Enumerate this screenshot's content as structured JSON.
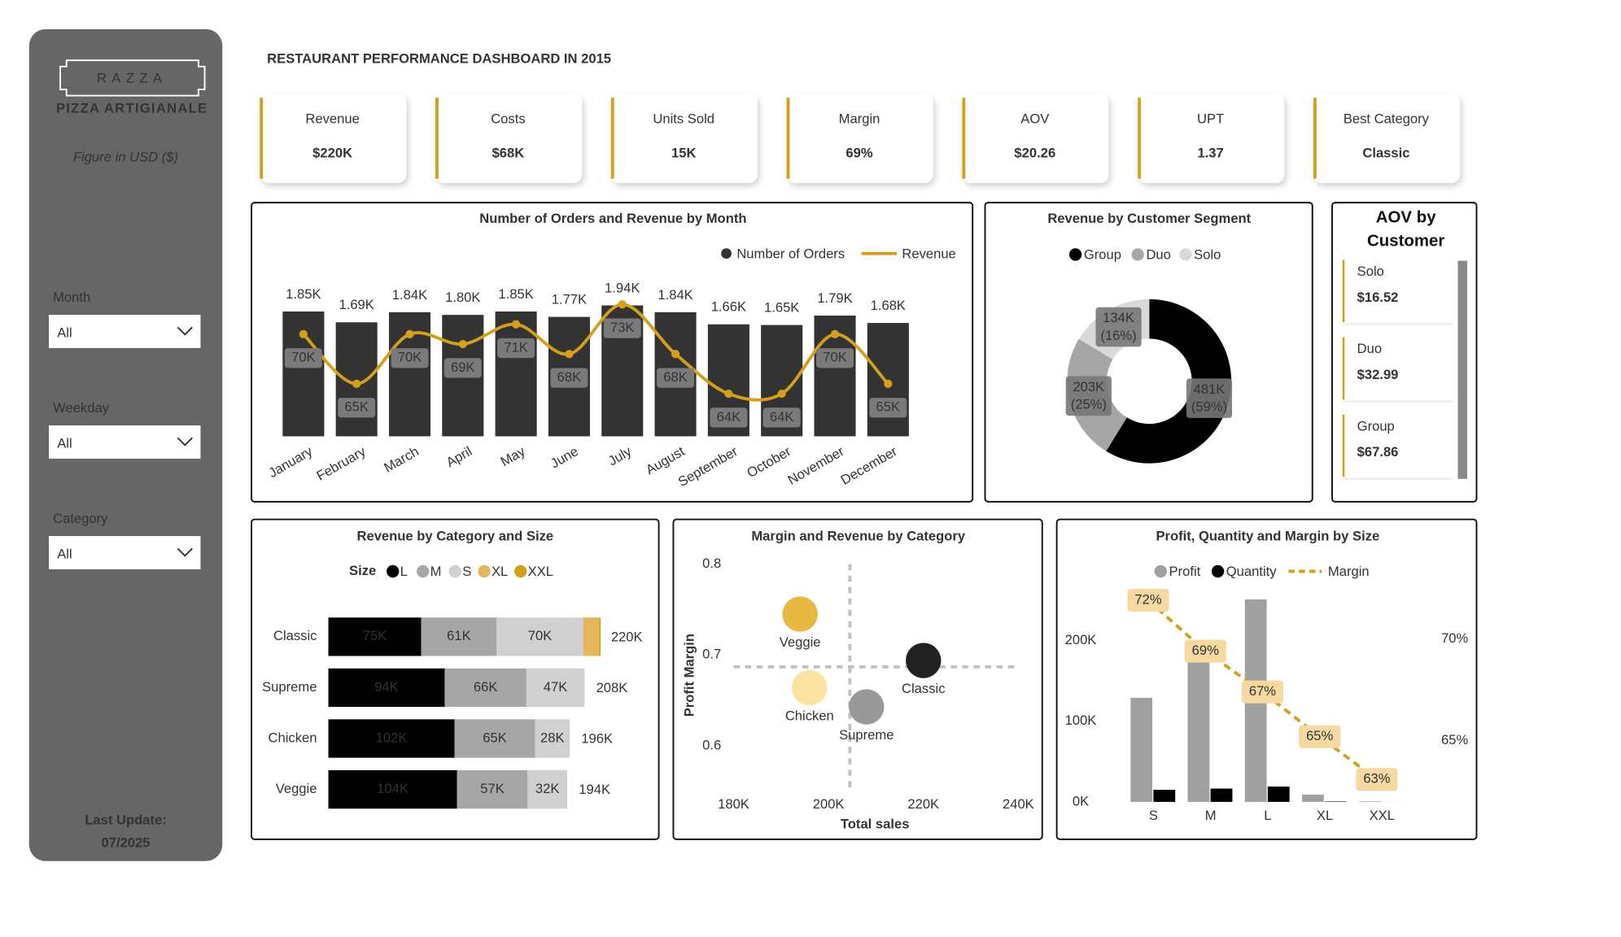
{
  "sidebar": {
    "logo": "RAZZA",
    "logo_tagline": "PIZZA ARTIGIANALE",
    "note": "Figure in USD ($)",
    "filters": [
      {
        "label": "Month",
        "value": "All"
      },
      {
        "label": "Weekday",
        "value": "All"
      },
      {
        "label": "Category",
        "value": "All"
      }
    ],
    "last_update_label": "Last Update:",
    "last_update": "07/2025"
  },
  "header": {
    "title": "RESTAURANT PERFORMANCE DASHBOARD IN 2015"
  },
  "kpis": [
    {
      "label": "Revenue",
      "value": "$220K"
    },
    {
      "label": "Costs",
      "value": "$68K"
    },
    {
      "label": "Units Sold",
      "value": "15K"
    },
    {
      "label": "Margin",
      "value": "69%"
    },
    {
      "label": "AOV",
      "value": "$20.26"
    },
    {
      "label": "UPT",
      "value": "1.37"
    },
    {
      "label": "Best Category",
      "value": "Classic"
    }
  ],
  "aov_by_customer": {
    "title": "AOV by Customer",
    "items": [
      {
        "name": "Solo",
        "value": "$16.52"
      },
      {
        "name": "Duo",
        "value": "$32.99"
      },
      {
        "name": "Group",
        "value": "$67.86"
      }
    ]
  },
  "chart_data": [
    {
      "type": "bar",
      "title": "Number of Orders and Revenue by Month",
      "legend": "top-right",
      "categories": [
        "January",
        "February",
        "March",
        "April",
        "May",
        "June",
        "July",
        "August",
        "September",
        "October",
        "November",
        "December"
      ],
      "series": [
        {
          "name": "Number of Orders",
          "color": "#333333",
          "values": [
            1850,
            1690,
            1840,
            1800,
            1850,
            1770,
            1940,
            1840,
            1660,
            1650,
            1790,
            1680
          ],
          "value_labels": [
            "1.85K",
            "1.69K",
            "1.84K",
            "1.80K",
            "1.85K",
            "1.77K",
            "1.94K",
            "1.84K",
            "1.66K",
            "1.65K",
            "1.79K",
            "1.68K"
          ]
        },
        {
          "name": "Revenue",
          "type": "line",
          "color": "#d4a017",
          "values": [
            70000,
            65000,
            70000,
            69000,
            71000,
            68000,
            73000,
            68000,
            64000,
            64000,
            70000,
            65000
          ],
          "value_labels": [
            "70K",
            "65K",
            "70K",
            "69K",
            "71K",
            "68K",
            "73K",
            "68K",
            "64K",
            "64K",
            "70K",
            "65K"
          ]
        }
      ]
    },
    {
      "type": "pie",
      "donut": true,
      "title": "Revenue by Customer Segment",
      "legend": "top",
      "categories": [
        "Group",
        "Duo",
        "Solo"
      ],
      "colors": [
        "#000000",
        "#a6a6a6",
        "#d9d9d9"
      ],
      "values": [
        481000,
        203000,
        134000
      ],
      "value_labels": [
        "481K",
        "203K",
        "134K"
      ],
      "percent_labels": [
        "(59%)",
        "(25%)",
        "(16%)"
      ]
    },
    {
      "type": "bar",
      "orientation": "horizontal",
      "stacked": true,
      "title": "Revenue by Category and Size",
      "legend": "top",
      "legend_title": "Size",
      "categories": [
        "Classic",
        "Supreme",
        "Chicken",
        "Veggie"
      ],
      "series": [
        {
          "name": "L",
          "color": "#000000",
          "values": [
            75000,
            94000,
            102000,
            104000
          ],
          "value_labels": [
            "75K",
            "94K",
            "102K",
            "104K"
          ]
        },
        {
          "name": "M",
          "color": "#a6a6a6",
          "values": [
            61000,
            66000,
            65000,
            57000
          ],
          "value_labels": [
            "61K",
            "66K",
            "65K",
            "57K"
          ]
        },
        {
          "name": "S",
          "color": "#d0d0d0",
          "values": [
            70000,
            47000,
            28000,
            32000
          ],
          "value_labels": [
            "70K",
            "47K",
            "28K",
            "32K"
          ]
        },
        {
          "name": "XL",
          "color": "#e6b65c",
          "values": [
            13000,
            null,
            null,
            null
          ]
        },
        {
          "name": "XXL",
          "color": "#d4a017",
          "values": [
            1000,
            null,
            null,
            null
          ]
        }
      ],
      "totals": [
        220000,
        208000,
        196000,
        194000
      ],
      "total_labels": [
        "220K",
        "208K",
        "196K",
        "194K"
      ]
    },
    {
      "type": "scatter",
      "title": "Margin and Revenue by Category",
      "x_label": "Total sales",
      "y_label": "Profit Margin",
      "xlim": [
        180000,
        240000
      ],
      "xticks": [
        {
          "value": 180000,
          "label": "180K"
        },
        {
          "value": 200000,
          "label": "200K"
        },
        {
          "value": 220000,
          "label": "220K"
        },
        {
          "value": 240000,
          "label": "240K"
        }
      ],
      "ylim": [
        0.55,
        0.8
      ],
      "yticks": [
        0.6,
        0.7,
        0.8
      ],
      "categories": [
        "Veggie",
        "Classic",
        "Chicken",
        "Supreme"
      ],
      "colors": [
        "#e8b840",
        "#222222",
        "#fbe3a0",
        "#999999"
      ],
      "x": [
        194000,
        220000,
        196000,
        208000
      ],
      "values": [
        0.745,
        0.694,
        0.664,
        0.643
      ],
      "reference_lines": {
        "x": 204500,
        "y": 0.687
      }
    },
    {
      "type": "bar",
      "title": "Profit, Quantity and Margin by Size",
      "legend": "top",
      "line_style": "dashed",
      "categories": [
        "S",
        "M",
        "L",
        "XL",
        "XXL"
      ],
      "series": [
        {
          "name": "Profit",
          "color": "#a0a0a0",
          "values": [
            129000,
            173000,
            251000,
            9000,
            700
          ]
        },
        {
          "name": "Quantity",
          "color": "#000000",
          "values": [
            15000,
            16500,
            19000,
            550,
            30
          ]
        },
        {
          "name": "Margin",
          "type": "line",
          "axis": "y2",
          "color": "#d4a017",
          "values": [
            71.9,
            69.4,
            67.4,
            65.2,
            63.1
          ],
          "value_labels": [
            "72%",
            "69%",
            "67%",
            "65%",
            "63%"
          ]
        }
      ],
      "ylim": [
        0,
        260000
      ],
      "yticks": [
        {
          "value": 0,
          "label": "0K"
        },
        {
          "value": 100000,
          "label": "100K"
        },
        {
          "value": 200000,
          "label": "200K"
        }
      ],
      "y2lim": [
        62,
        72.3
      ],
      "y2ticks": [
        {
          "value": 65,
          "label": "65%"
        },
        {
          "value": 70,
          "label": "70%"
        }
      ]
    }
  ]
}
